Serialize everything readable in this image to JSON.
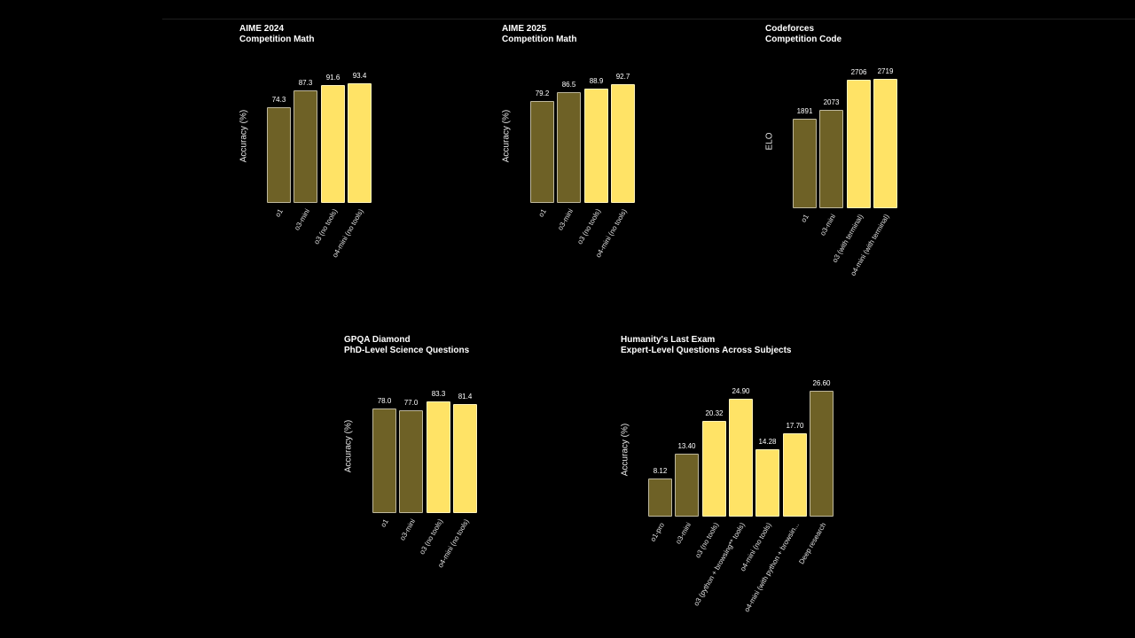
{
  "colors": {
    "dark": "#6e6126",
    "light": "#ffe366"
  },
  "chart_data": [
    {
      "type": "bar",
      "title": "AIME 2024",
      "subtitle": "Competition Math",
      "ylabel": "Accuracy (%)",
      "categories": [
        "o1",
        "o3-mini",
        "o3 (no tools)",
        "o4-mini (no tools)"
      ],
      "values": [
        74.3,
        87.3,
        91.6,
        93.4
      ],
      "value_labels": [
        "74.3",
        "87.3",
        "91.6",
        "93.4"
      ],
      "highlight": [
        false,
        false,
        true,
        true
      ],
      "ylim": [
        0,
        100
      ]
    },
    {
      "type": "bar",
      "title": "AIME 2025",
      "subtitle": "Competition Math",
      "ylabel": "Accuracy (%)",
      "categories": [
        "o1",
        "o3-mini",
        "o3 (no tools)",
        "o4-mini (no tools)"
      ],
      "values": [
        79.2,
        86.5,
        88.9,
        92.7
      ],
      "value_labels": [
        "79.2",
        "86.5",
        "88.9",
        "92.7"
      ],
      "highlight": [
        false,
        false,
        true,
        true
      ],
      "ylim": [
        0,
        100
      ]
    },
    {
      "type": "bar",
      "title": "Codeforces",
      "subtitle": "Competition Code",
      "ylabel": "ELO",
      "categories": [
        "o1",
        "o3-mini",
        "o3 (with terminal)",
        "o4-mini (with terminal)"
      ],
      "values": [
        1891,
        2073,
        2706,
        2719
      ],
      "value_labels": [
        "1891",
        "2073",
        "2706",
        "2719"
      ],
      "highlight": [
        false,
        false,
        true,
        true
      ],
      "ylim": [
        0,
        2800
      ]
    },
    {
      "type": "bar",
      "title": "GPQA Diamond",
      "subtitle": "PhD-Level Science Questions",
      "ylabel": "Accuracy (%)",
      "categories": [
        "o1",
        "o3-mini",
        "o3 (no tools)",
        "o4-mini (no tools)"
      ],
      "values": [
        78.0,
        77.0,
        83.3,
        81.4
      ],
      "value_labels": [
        "78.0",
        "77.0",
        "83.3",
        "81.4"
      ],
      "highlight": [
        false,
        false,
        true,
        true
      ],
      "ylim": [
        0,
        100
      ]
    },
    {
      "type": "bar",
      "title": "Humanity's Last Exam",
      "subtitle": "Expert-Level Questions Across Subjects",
      "ylabel": "Accuracy (%)",
      "categories": [
        "o1-pro",
        "o3-mini",
        "o3 (no tools)",
        "o3 (python + browsing** tools)",
        "o4-mini (no tools)",
        "o4-mini (with python + browsin...",
        "Deep research"
      ],
      "values": [
        8.12,
        13.4,
        20.32,
        24.9,
        14.28,
        17.7,
        26.6
      ],
      "value_labels": [
        "8.12",
        "13.40",
        "20.32",
        "24.90",
        "14.28",
        "17.70",
        "26.60"
      ],
      "highlight": [
        false,
        false,
        true,
        true,
        true,
        true,
        false
      ],
      "ylim": [
        0,
        28
      ]
    }
  ]
}
